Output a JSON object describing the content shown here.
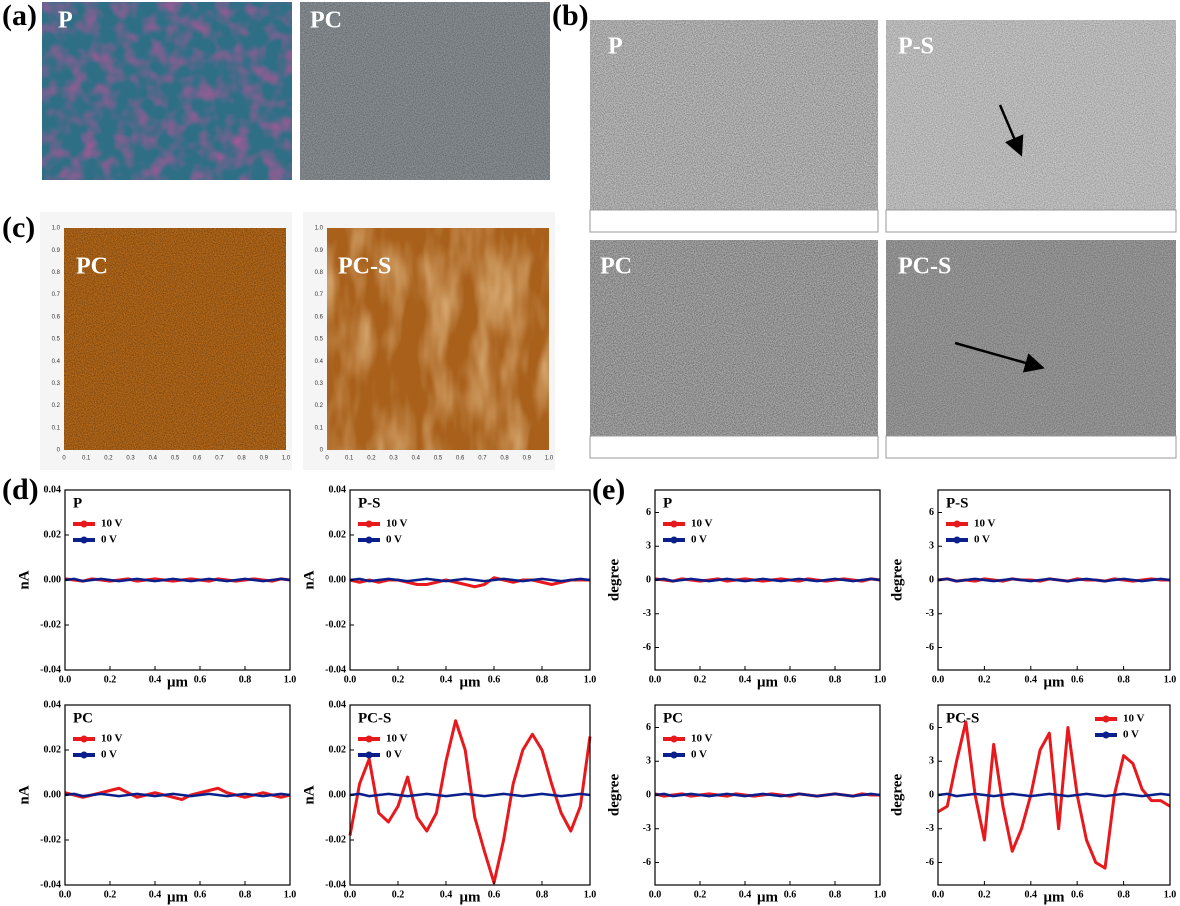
{
  "panels": {
    "a": {
      "label": "(a)",
      "images": [
        {
          "label": "P"
        },
        {
          "label": "PC"
        }
      ]
    },
    "b": {
      "label": "(b)",
      "images": [
        {
          "label": "P"
        },
        {
          "label": "P-S"
        },
        {
          "label": "PC"
        },
        {
          "label": "PC-S"
        }
      ]
    },
    "c": {
      "label": "(c)",
      "images": [
        {
          "label": "PC"
        },
        {
          "label": "PC-S"
        }
      ],
      "afm_ticks": [
        "0",
        "0.1",
        "0.2",
        "0.3",
        "0.4",
        "0.5",
        "0.6",
        "0.7",
        "0.8",
        "0.9",
        "1.0"
      ]
    },
    "d": {
      "label": "(d)"
    },
    "e": {
      "label": "(e)"
    }
  },
  "chart_data": [
    {
      "type": "line",
      "title": "P",
      "xlabel": "μm",
      "ylabel": "nA",
      "legend": "upper left",
      "x": [
        0,
        0.04,
        0.08,
        0.12,
        0.16,
        0.2,
        0.24,
        0.28,
        0.32,
        0.36,
        0.4,
        0.44,
        0.48,
        0.52,
        0.56,
        0.6,
        0.64,
        0.68,
        0.72,
        0.76,
        0.8,
        0.84,
        0.88,
        0.92,
        0.96,
        1
      ],
      "series": [
        {
          "name": "10 V",
          "color": "#e8191c",
          "values": [
            0.0005,
            0,
            -0.0005,
            0.0005,
            0,
            -0.0005,
            0,
            0.0005,
            -0.0005,
            0,
            0.0005,
            0,
            -0.0005,
            0,
            0.0005,
            0,
            -0.0005,
            0.0005,
            0,
            -0.0005,
            0,
            0.0005,
            0,
            -0.0005,
            0.0005,
            0
          ]
        },
        {
          "name": "0 V",
          "color": "#0b1f8c",
          "values": [
            0,
            0.0005,
            -0.0005,
            0,
            0.0005,
            0,
            -0.0005,
            0,
            0.0005,
            0,
            -0.0005,
            0,
            0.0005,
            0,
            -0.0005,
            0,
            0.0005,
            0,
            -0.0005,
            0,
            0.0005,
            0,
            -0.0005,
            0,
            0.0005,
            0
          ]
        }
      ],
      "xlim": [
        0,
        1
      ],
      "ylim": [
        -0.04,
        0.04
      ],
      "xticks": [
        {
          "value": 0,
          "label": "0.0"
        },
        0.2,
        0.4,
        0.6,
        0.8,
        {
          "value": 1,
          "label": "1.0"
        }
      ],
      "yticks": [
        0.04,
        0.02,
        {
          "value": 0,
          "label": "0.00"
        },
        -0.02,
        -0.04
      ]
    },
    {
      "type": "line",
      "title": "P-S",
      "xlabel": "μm",
      "ylabel": "nA",
      "legend": "upper left",
      "x": [
        0,
        0.04,
        0.08,
        0.12,
        0.16,
        0.2,
        0.24,
        0.28,
        0.32,
        0.36,
        0.4,
        0.44,
        0.48,
        0.52,
        0.56,
        0.6,
        0.64,
        0.68,
        0.72,
        0.76,
        0.8,
        0.84,
        0.88,
        0.92,
        0.96,
        1
      ],
      "series": [
        {
          "name": "10 V",
          "color": "#e8191c",
          "values": [
            0,
            -0.001,
            0,
            -0.001,
            0,
            0,
            -0.001,
            -0.002,
            -0.002,
            -0.001,
            0,
            -0.001,
            -0.002,
            -0.003,
            -0.002,
            0.001,
            0,
            -0.001,
            0,
            0,
            -0.001,
            -0.002,
            -0.001,
            0,
            0,
            0
          ]
        },
        {
          "name": "0 V",
          "color": "#0b1f8c",
          "values": [
            0,
            0.0005,
            -0.0005,
            0,
            0.0005,
            0,
            -0.0005,
            0,
            0.0005,
            0,
            -0.0005,
            0,
            0.0005,
            0,
            -0.0005,
            0,
            0.0005,
            0,
            -0.0005,
            0,
            0.0005,
            0,
            -0.0005,
            0,
            0.0005,
            0
          ]
        }
      ],
      "xlim": [
        0,
        1
      ],
      "ylim": [
        -0.04,
        0.04
      ],
      "xticks": [
        {
          "value": 0,
          "label": "0.0"
        },
        0.2,
        0.4,
        0.6,
        0.8,
        {
          "value": 1,
          "label": "1.0"
        }
      ],
      "yticks": [
        0.04,
        0.02,
        {
          "value": 0,
          "label": "0.00"
        },
        -0.02,
        -0.04
      ]
    },
    {
      "type": "line",
      "title": "PC",
      "xlabel": "μm",
      "ylabel": "nA",
      "legend": "upper left",
      "x": [
        0,
        0.04,
        0.08,
        0.12,
        0.16,
        0.2,
        0.24,
        0.28,
        0.32,
        0.36,
        0.4,
        0.44,
        0.48,
        0.52,
        0.56,
        0.6,
        0.64,
        0.68,
        0.72,
        0.76,
        0.8,
        0.84,
        0.88,
        0.92,
        0.96,
        1
      ],
      "series": [
        {
          "name": "10 V",
          "color": "#e8191c",
          "values": [
            0.001,
            0,
            -0.001,
            0,
            0.001,
            0.002,
            0.003,
            0.001,
            -0.001,
            0,
            0.001,
            0,
            -0.001,
            -0.002,
            0,
            0.001,
            0.002,
            0.003,
            0.001,
            0,
            -0.001,
            0,
            0.001,
            0,
            -0.001,
            0
          ]
        },
        {
          "name": "0 V",
          "color": "#0b1f8c",
          "values": [
            0,
            0.0005,
            -0.0005,
            0,
            0.0005,
            0,
            -0.0005,
            0,
            0.0005,
            0,
            -0.0005,
            0,
            0.0005,
            0,
            -0.0005,
            0,
            0.0005,
            0,
            -0.0005,
            0,
            0.0005,
            0,
            -0.0005,
            0,
            0.0005,
            0
          ]
        }
      ],
      "xlim": [
        0,
        1
      ],
      "ylim": [
        -0.04,
        0.04
      ],
      "xticks": [
        {
          "value": 0,
          "label": "0.0"
        },
        0.2,
        0.4,
        0.6,
        0.8,
        {
          "value": 1,
          "label": "1.0"
        }
      ],
      "yticks": [
        0.04,
        0.02,
        {
          "value": 0,
          "label": "0.00"
        },
        -0.02,
        -0.04
      ]
    },
    {
      "type": "line",
      "title": "PC-S",
      "xlabel": "μm",
      "ylabel": "nA",
      "legend": "upper left",
      "x": [
        0,
        0.04,
        0.08,
        0.12,
        0.16,
        0.2,
        0.24,
        0.28,
        0.32,
        0.36,
        0.4,
        0.44,
        0.48,
        0.52,
        0.56,
        0.6,
        0.64,
        0.68,
        0.72,
        0.76,
        0.8,
        0.84,
        0.88,
        0.92,
        0.96,
        1
      ],
      "series": [
        {
          "name": "10 V",
          "color": "#e8191c",
          "values": [
            -0.018,
            0.005,
            0.016,
            -0.008,
            -0.012,
            -0.005,
            0.008,
            -0.01,
            -0.016,
            -0.008,
            0.015,
            0.033,
            0.02,
            -0.01,
            -0.025,
            -0.039,
            -0.02,
            0.005,
            0.02,
            0.027,
            0.02,
            0.005,
            -0.008,
            -0.016,
            -0.005,
            0.026
          ]
        },
        {
          "name": "0 V",
          "color": "#0b1f8c",
          "values": [
            0,
            0.0005,
            -0.0005,
            0,
            0.0005,
            0,
            -0.0005,
            0,
            0.0005,
            0,
            -0.0005,
            0,
            0.0005,
            0,
            -0.0005,
            0,
            0.0005,
            0,
            -0.0005,
            0,
            0.0005,
            0,
            -0.0005,
            0,
            0.0005,
            0
          ]
        }
      ],
      "xlim": [
        0,
        1
      ],
      "ylim": [
        -0.04,
        0.04
      ],
      "xticks": [
        {
          "value": 0,
          "label": "0.0"
        },
        0.2,
        0.4,
        0.6,
        0.8,
        {
          "value": 1,
          "label": "1.0"
        }
      ],
      "yticks": [
        0.04,
        0.02,
        {
          "value": 0,
          "label": "0.00"
        },
        -0.02,
        -0.04
      ]
    },
    {
      "type": "line",
      "title": "P",
      "xlabel": "μm",
      "ylabel": "degree",
      "legend": "upper left",
      "x": [
        0,
        0.04,
        0.08,
        0.12,
        0.16,
        0.2,
        0.24,
        0.28,
        0.32,
        0.36,
        0.4,
        0.44,
        0.48,
        0.52,
        0.56,
        0.6,
        0.64,
        0.68,
        0.72,
        0.76,
        0.8,
        0.84,
        0.88,
        0.92,
        0.96,
        1
      ],
      "series": [
        {
          "name": "10 V",
          "color": "#e8191c",
          "values": [
            0.1,
            0,
            -0.1,
            0.1,
            0,
            -0.1,
            0,
            0.1,
            -0.1,
            0,
            0.1,
            0,
            -0.1,
            0,
            0.1,
            0,
            -0.1,
            0.1,
            0,
            -0.1,
            0,
            0.1,
            0,
            -0.1,
            0.1,
            0
          ]
        },
        {
          "name": "0 V",
          "color": "#0b1f8c",
          "values": [
            0,
            0.1,
            -0.1,
            0,
            0.1,
            0,
            -0.1,
            0,
            0.1,
            0,
            -0.1,
            0,
            0.1,
            0,
            -0.1,
            0,
            0.1,
            0,
            -0.1,
            0,
            0.1,
            0,
            -0.1,
            0,
            0.1,
            0
          ]
        }
      ],
      "xlim": [
        0,
        1
      ],
      "ylim": [
        -8,
        8
      ],
      "xticks": [
        {
          "value": 0,
          "label": "0.0"
        },
        0.2,
        0.4,
        0.6,
        0.8,
        {
          "value": 1,
          "label": "1.0"
        }
      ],
      "yticks": [
        6,
        3,
        0,
        -3,
        -6
      ]
    },
    {
      "type": "line",
      "title": "P-S",
      "xlabel": "μm",
      "ylabel": "degree",
      "legend": "upper left",
      "x": [
        0,
        0.04,
        0.08,
        0.12,
        0.16,
        0.2,
        0.24,
        0.28,
        0.32,
        0.36,
        0.4,
        0.44,
        0.48,
        0.52,
        0.56,
        0.6,
        0.64,
        0.68,
        0.72,
        0.76,
        0.8,
        0.84,
        0.88,
        0.92,
        0.96,
        1
      ],
      "series": [
        {
          "name": "10 V",
          "color": "#e8191c",
          "values": [
            0,
            0.1,
            -0.1,
            0,
            -0.1,
            0.1,
            0,
            -0.1,
            0.1,
            0,
            0,
            -0.1,
            0.1,
            0,
            -0.1,
            0.1,
            0,
            0,
            -0.1,
            0.1,
            0,
            -0.1,
            0,
            0.1,
            0,
            0
          ]
        },
        {
          "name": "0 V",
          "color": "#0b1f8c",
          "values": [
            0,
            0.1,
            -0.1,
            0,
            0.1,
            0,
            -0.1,
            0,
            0.1,
            0,
            -0.1,
            0,
            0.1,
            0,
            -0.1,
            0,
            0.1,
            0,
            -0.1,
            0,
            0.1,
            0,
            -0.1,
            0,
            0.1,
            0
          ]
        }
      ],
      "xlim": [
        0,
        1
      ],
      "ylim": [
        -8,
        8
      ],
      "xticks": [
        {
          "value": 0,
          "label": "0.0"
        },
        0.2,
        0.4,
        0.6,
        0.8,
        {
          "value": 1,
          "label": "1.0"
        }
      ],
      "yticks": [
        6,
        3,
        0,
        -3,
        -6
      ]
    },
    {
      "type": "line",
      "title": "PC",
      "xlabel": "μm",
      "ylabel": "degree",
      "legend": "upper left",
      "x": [
        0,
        0.04,
        0.08,
        0.12,
        0.16,
        0.2,
        0.24,
        0.28,
        0.32,
        0.36,
        0.4,
        0.44,
        0.48,
        0.52,
        0.56,
        0.6,
        0.64,
        0.68,
        0.72,
        0.76,
        0.8,
        0.84,
        0.88,
        0.92,
        0.96,
        1
      ],
      "series": [
        {
          "name": "10 V",
          "color": "#e8191c",
          "values": [
            0.1,
            -0.1,
            0,
            0.1,
            -0.1,
            0,
            0.1,
            0,
            -0.1,
            0.1,
            0,
            -0.1,
            0,
            0.1,
            0,
            -0.1,
            0.1,
            0,
            -0.1,
            0,
            0.1,
            0,
            -0.1,
            0.1,
            0,
            0
          ]
        },
        {
          "name": "0 V",
          "color": "#0b1f8c",
          "values": [
            0,
            0.1,
            -0.1,
            0,
            0.1,
            0,
            -0.1,
            0,
            0.1,
            0,
            -0.1,
            0,
            0.1,
            0,
            -0.1,
            0,
            0.1,
            0,
            -0.1,
            0,
            0.1,
            0,
            -0.1,
            0,
            0.1,
            0
          ]
        }
      ],
      "xlim": [
        0,
        1
      ],
      "ylim": [
        -8,
        8
      ],
      "xticks": [
        {
          "value": 0,
          "label": "0.0"
        },
        0.2,
        0.4,
        0.6,
        0.8,
        {
          "value": 1,
          "label": "1.0"
        }
      ],
      "yticks": [
        6,
        3,
        0,
        -3,
        -6
      ]
    },
    {
      "type": "line",
      "title": "PC-S",
      "xlabel": "μm",
      "ylabel": "degree",
      "legend": "upper right",
      "x": [
        0,
        0.04,
        0.08,
        0.12,
        0.16,
        0.2,
        0.24,
        0.28,
        0.32,
        0.36,
        0.4,
        0.44,
        0.48,
        0.52,
        0.56,
        0.6,
        0.64,
        0.68,
        0.72,
        0.76,
        0.8,
        0.84,
        0.88,
        0.92,
        0.96,
        1
      ],
      "series": [
        {
          "name": "10 V",
          "color": "#e8191c",
          "values": [
            -1.5,
            -1,
            3,
            6.5,
            0,
            -4,
            4.5,
            -1,
            -5,
            -3,
            0,
            4,
            5.5,
            -3,
            6,
            0,
            -4,
            -6,
            -6.5,
            0,
            3.5,
            2.8,
            0.5,
            -0.5,
            -0.5,
            -1
          ]
        },
        {
          "name": "0 V",
          "color": "#0b1f8c",
          "values": [
            0,
            0.1,
            -0.1,
            0,
            0.1,
            0,
            -0.1,
            0,
            0.1,
            0,
            -0.1,
            0,
            0.1,
            0,
            -0.1,
            0,
            0.1,
            0,
            -0.1,
            0,
            0.1,
            0,
            -0.1,
            0,
            0.1,
            0
          ]
        }
      ],
      "xlim": [
        0,
        1
      ],
      "ylim": [
        -8,
        8
      ],
      "xticks": [
        {
          "value": 0,
          "label": "0.0"
        },
        0.2,
        0.4,
        0.6,
        0.8,
        {
          "value": 1,
          "label": "1.0"
        }
      ],
      "yticks": [
        6,
        3,
        0,
        -3,
        -6
      ]
    }
  ]
}
